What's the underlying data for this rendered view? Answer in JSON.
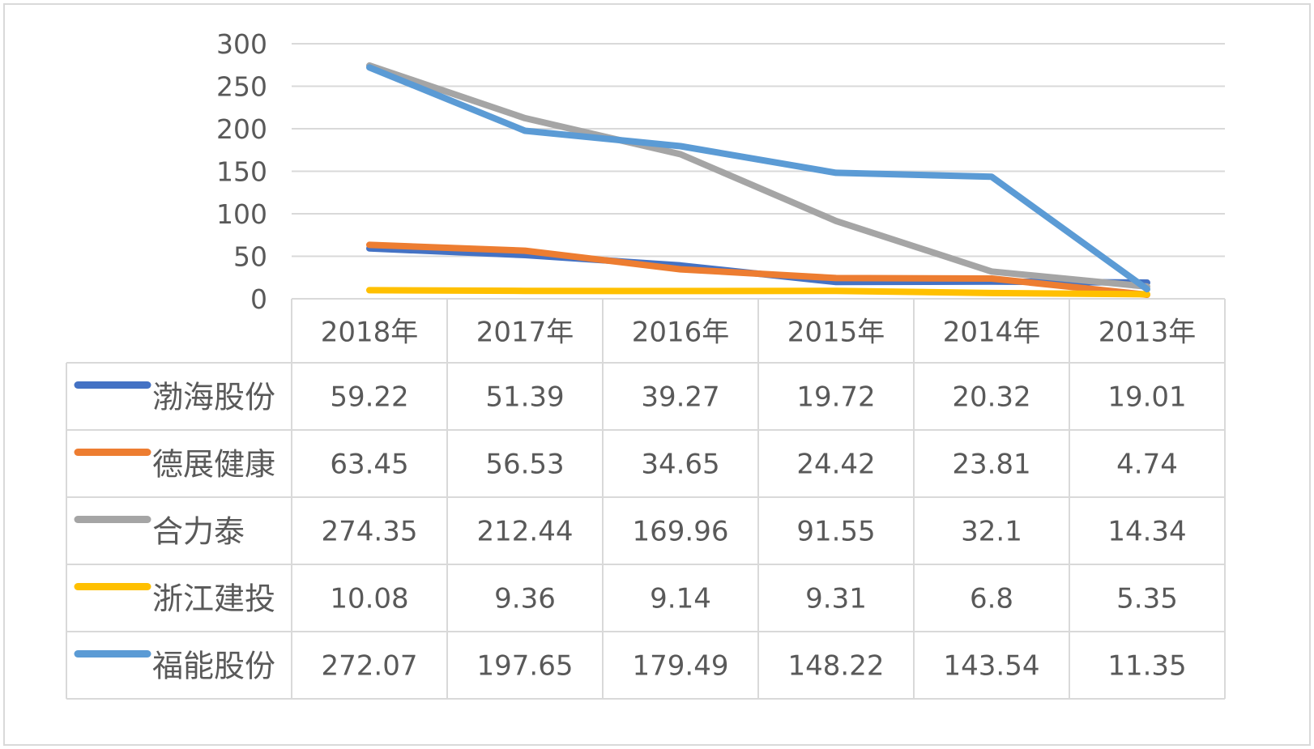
{
  "chart_data": {
    "type": "line",
    "title": "",
    "xlabel": "",
    "ylabel": "",
    "categories": [
      "2018年",
      "2017年",
      "2016年",
      "2015年",
      "2014年",
      "2013年"
    ],
    "ylim": [
      0,
      300
    ],
    "yticks": [
      0,
      50,
      100,
      150,
      200,
      250,
      300
    ],
    "grid": true,
    "legend": "data-table-left",
    "series": [
      {
        "name": "渤海股份",
        "color": "#4472c4",
        "values": [
          59.22,
          51.39,
          39.27,
          19.72,
          20.32,
          19.01
        ],
        "labels": [
          "59.22",
          "51.39",
          "39.27",
          "19.72",
          "20.32",
          "19.01"
        ]
      },
      {
        "name": "德展健康",
        "color": "#ed7d31",
        "values": [
          63.45,
          56.53,
          34.65,
          24.42,
          23.81,
          4.74
        ],
        "labels": [
          "63.45",
          "56.53",
          "34.65",
          "24.42",
          "23.81",
          "4.74"
        ]
      },
      {
        "name": "合力泰",
        "color": "#a5a5a5",
        "values": [
          274.35,
          212.44,
          169.96,
          91.55,
          32.1,
          14.34
        ],
        "labels": [
          "274.35",
          "212.44",
          "169.96",
          "91.55",
          "32.1",
          "14.34"
        ]
      },
      {
        "name": "浙江建投",
        "color": "#ffc000",
        "values": [
          10.08,
          9.36,
          9.14,
          9.31,
          6.8,
          5.35
        ],
        "labels": [
          "10.08",
          "9.36",
          "9.14",
          "9.31",
          "6.8",
          "5.35"
        ]
      },
      {
        "name": "福能股份",
        "color": "#5b9bd5",
        "values": [
          272.07,
          197.65,
          179.49,
          148.22,
          143.54,
          11.35
        ],
        "labels": [
          "272.07",
          "197.65",
          "179.49",
          "148.22",
          "143.54",
          "11.35"
        ]
      }
    ]
  }
}
